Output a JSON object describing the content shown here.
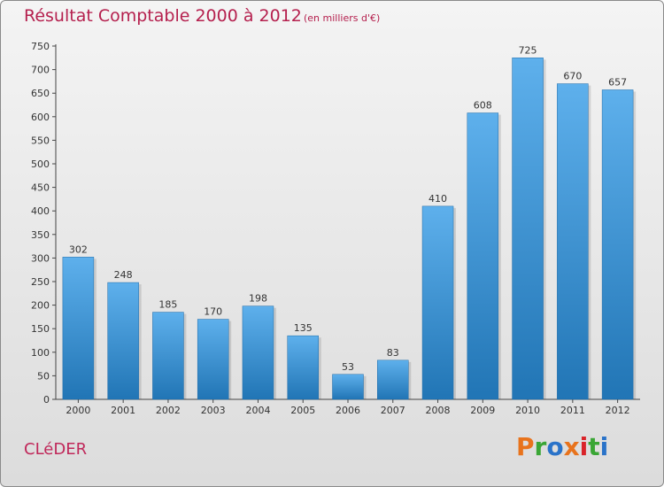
{
  "header": {
    "title": "Résultat Comptable 2000 à 2012",
    "subtitle": "(en milliers d'€)"
  },
  "footer": {
    "city": "CLéDER",
    "logo": "Proxiti",
    "logo_colors": [
      "#e8731c",
      "#3aa635",
      "#2a73c9",
      "#e8731c",
      "#d9242a",
      "#3aa635",
      "#2a73c9"
    ]
  },
  "colors": {
    "bar_light": "#5eb0ec",
    "bar_dark": "#2175b5",
    "title": "#b5204e"
  },
  "chart_data": {
    "type": "bar",
    "title": "Résultat Comptable 2000 à 2012",
    "subtitle": "(en milliers d'€)",
    "categories": [
      "2000",
      "2001",
      "2002",
      "2003",
      "2004",
      "2005",
      "2006",
      "2007",
      "2008",
      "2009",
      "2010",
      "2011",
      "2012"
    ],
    "values": [
      302,
      248,
      185,
      170,
      198,
      135,
      53,
      83,
      410,
      608,
      725,
      670,
      657
    ],
    "xlabel": "",
    "ylabel": "",
    "ylim": [
      0,
      750
    ],
    "yticks": [
      0,
      50,
      100,
      150,
      200,
      250,
      300,
      350,
      400,
      450,
      500,
      550,
      600,
      650,
      700,
      750
    ],
    "grid": false,
    "data_labels": true
  }
}
